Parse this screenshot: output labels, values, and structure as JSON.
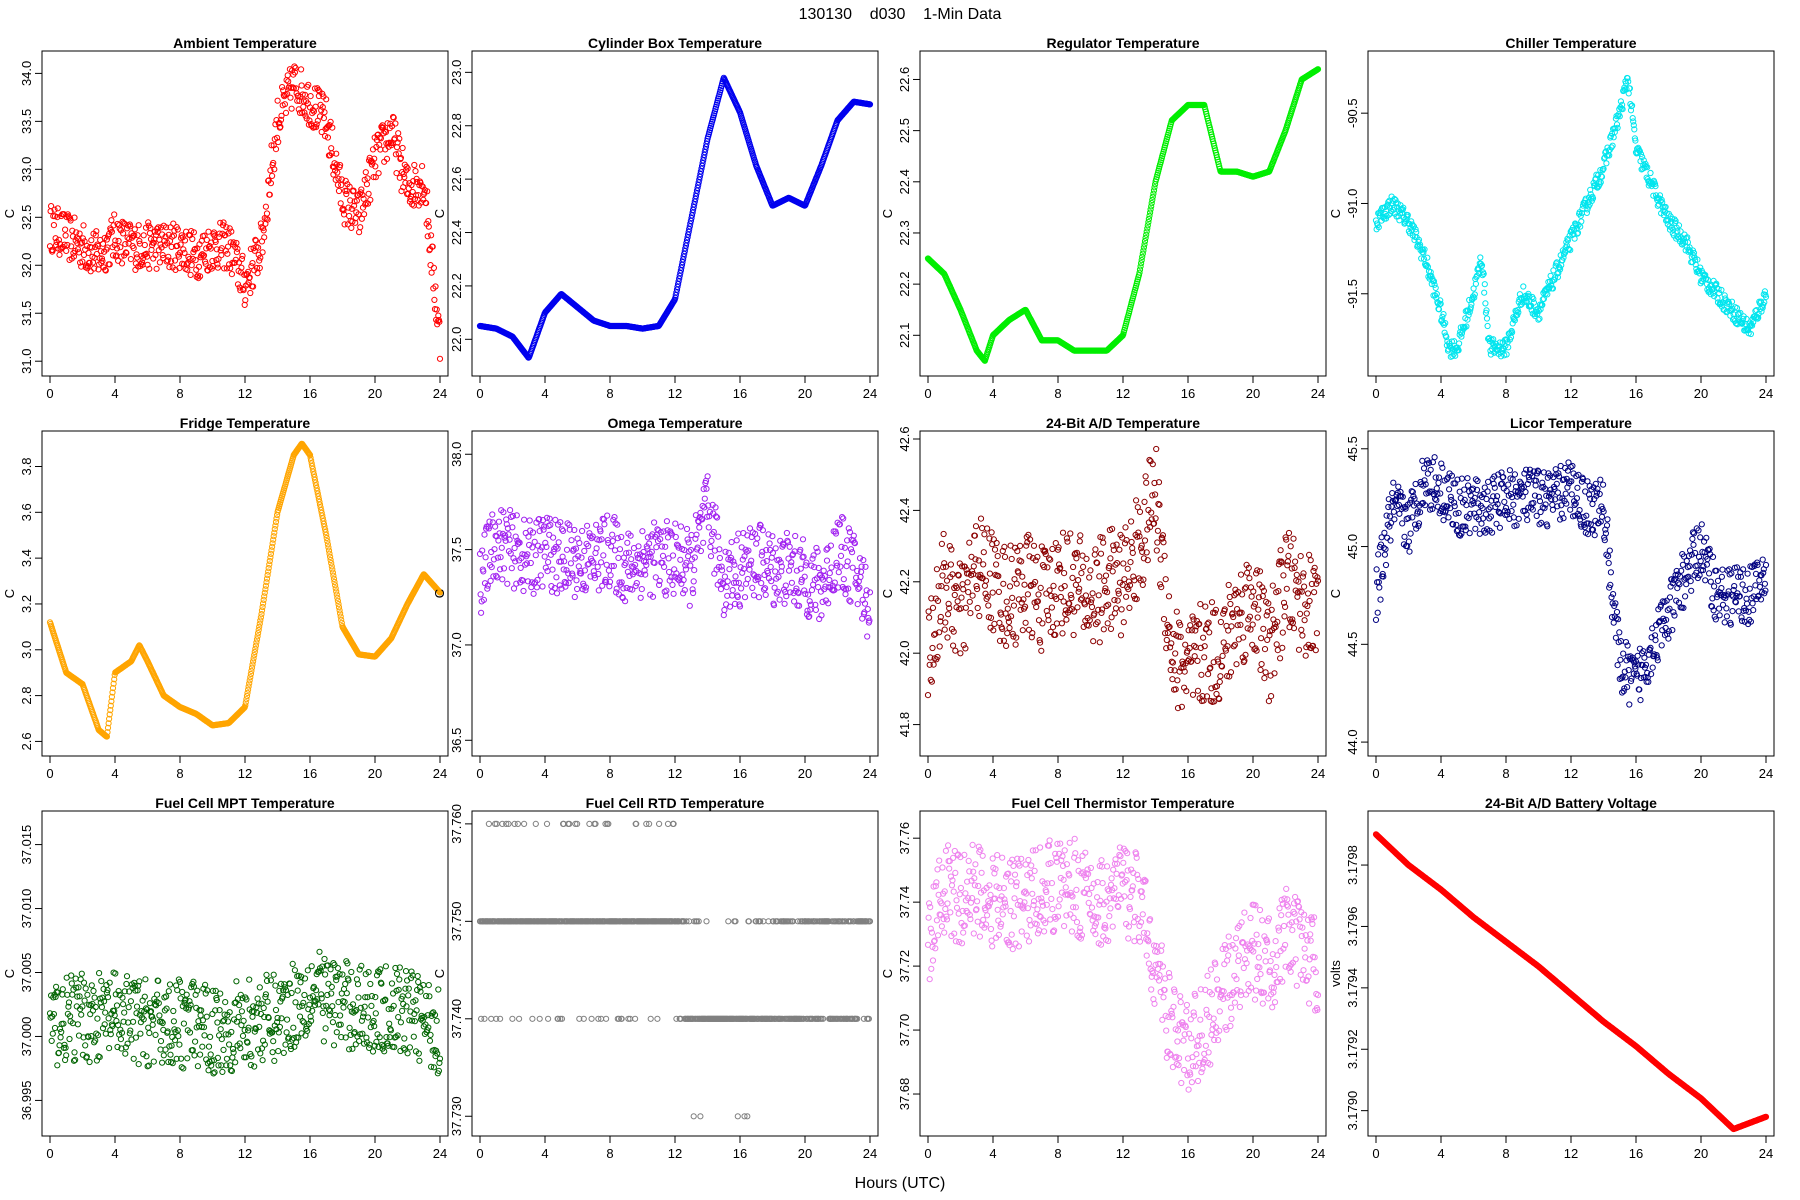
{
  "figure": {
    "title": "130130    d030    1-Min Data",
    "xlabel": "Hours (UTC)"
  },
  "chart_data": [
    {
      "type": "scatter",
      "title": "Ambient Temperature",
      "ylabel": "C",
      "color": "#ff0000",
      "xlim": [
        0,
        24
      ],
      "ylim": [
        30.95,
        34.15
      ],
      "xticks": [
        0,
        4,
        8,
        12,
        16,
        20,
        24
      ],
      "yticks": [
        31.0,
        31.5,
        32.0,
        32.5,
        33.0,
        33.5,
        34.0
      ],
      "ytick_labels": [
        "31.0",
        "31.5",
        "32.0",
        "32.5",
        "33.0",
        "33.5",
        "34.0"
      ],
      "x": [
        0,
        1,
        2,
        3,
        4,
        5,
        6,
        7,
        8,
        9,
        10,
        11,
        12,
        13,
        14,
        15,
        16,
        17,
        18,
        19,
        20,
        21,
        22,
        23,
        24
      ],
      "y": [
        32.4,
        32.3,
        32.2,
        32.1,
        32.3,
        32.2,
        32.2,
        32.2,
        32.2,
        32.1,
        32.2,
        32.2,
        31.8,
        32.2,
        33.5,
        33.9,
        33.7,
        33.5,
        32.7,
        32.5,
        33.1,
        33.4,
        32.8,
        32.9,
        31.2
      ],
      "spread": 0.25
    },
    {
      "type": "scatter",
      "title": "Cylinder Box Temperature",
      "ylabel": "C",
      "color": "#0000ee",
      "xlim": [
        0,
        24
      ],
      "ylim": [
        21.9,
        23.05
      ],
      "xticks": [
        0,
        4,
        8,
        12,
        16,
        20,
        24
      ],
      "yticks": [
        22.0,
        22.2,
        22.4,
        22.6,
        22.8,
        23.0
      ],
      "ytick_labels": [
        "22.0",
        "22.2",
        "22.4",
        "22.6",
        "22.8",
        "23.0"
      ],
      "x": [
        0,
        1,
        2,
        3,
        4,
        5,
        6,
        7,
        8,
        9,
        10,
        11,
        12,
        13,
        14,
        15,
        16,
        17,
        18,
        19,
        20,
        21,
        22,
        23,
        24
      ],
      "y": [
        22.05,
        22.04,
        22.01,
        21.93,
        22.1,
        22.17,
        22.12,
        22.07,
        22.05,
        22.05,
        22.04,
        22.05,
        22.15,
        22.45,
        22.75,
        22.98,
        22.85,
        22.65,
        22.5,
        22.53,
        22.5,
        22.65,
        22.82,
        22.89,
        22.88
      ],
      "spread": 0.0
    },
    {
      "type": "scatter",
      "title": "Regulator Temperature",
      "ylabel": "C",
      "color": "#00ee00",
      "xlim": [
        0,
        24
      ],
      "ylim": [
        22.04,
        22.64
      ],
      "xticks": [
        0,
        4,
        8,
        12,
        16,
        20,
        24
      ],
      "yticks": [
        22.1,
        22.2,
        22.3,
        22.4,
        22.5,
        22.6
      ],
      "ytick_labels": [
        "22.1",
        "22.2",
        "22.3",
        "22.4",
        "22.5",
        "22.6"
      ],
      "x": [
        0,
        1,
        2,
        3,
        3.5,
        4,
        5,
        6,
        7,
        8,
        9,
        10,
        11,
        12,
        13,
        14,
        15,
        16,
        17,
        18,
        19,
        20,
        21,
        22,
        23,
        24
      ],
      "y": [
        22.25,
        22.22,
        22.15,
        22.07,
        22.05,
        22.1,
        22.13,
        22.15,
        22.09,
        22.09,
        22.07,
        22.07,
        22.07,
        22.1,
        22.22,
        22.4,
        22.52,
        22.55,
        22.55,
        22.42,
        22.42,
        22.41,
        22.42,
        22.5,
        22.6,
        22.62
      ],
      "spread": 0.0
    },
    {
      "type": "scatter",
      "title": "Chiller Temperature",
      "ylabel": "C",
      "color": "#00e5ee",
      "xlim": [
        0,
        24
      ],
      "ylim": [
        -91.9,
        -90.2
      ],
      "xticks": [
        0,
        4,
        8,
        12,
        16,
        20,
        24
      ],
      "yticks": [
        -91.5,
        -91.0,
        -90.5
      ],
      "ytick_labels": [
        "-91.5",
        "-91.0",
        "-90.5"
      ],
      "x": [
        0,
        1,
        2,
        3,
        4,
        4.5,
        5,
        6,
        6.5,
        7,
        8,
        9,
        10,
        11,
        12,
        13,
        14,
        15,
        15.5,
        16,
        17,
        18,
        19,
        20,
        21,
        22,
        23,
        24
      ],
      "y": [
        -91.1,
        -91.0,
        -91.1,
        -91.3,
        -91.6,
        -91.8,
        -91.8,
        -91.5,
        -91.3,
        -91.8,
        -91.8,
        -91.5,
        -91.6,
        -91.4,
        -91.2,
        -91.0,
        -90.8,
        -90.5,
        -90.3,
        -90.7,
        -90.9,
        -91.1,
        -91.2,
        -91.4,
        -91.5,
        -91.6,
        -91.7,
        -91.5
      ],
      "spread": 0.05
    },
    {
      "type": "scatter",
      "title": "Fridge Temperature",
      "ylabel": "C",
      "color": "#ffa500",
      "xlim": [
        0,
        24
      ],
      "ylim": [
        2.58,
        3.92
      ],
      "xticks": [
        0,
        4,
        8,
        12,
        16,
        20,
        24
      ],
      "yticks": [
        2.6,
        2.8,
        3.0,
        3.2,
        3.4,
        3.6,
        3.8
      ],
      "ytick_labels": [
        "2.6",
        "2.8",
        "3.0",
        "3.2",
        "3.4",
        "3.6",
        "3.8"
      ],
      "x": [
        0,
        1,
        2,
        3,
        3.5,
        4,
        5,
        5.5,
        6,
        7,
        8,
        9,
        10,
        11,
        12,
        13,
        14,
        15,
        15.5,
        16,
        17,
        18,
        19,
        20,
        21,
        22,
        23,
        24
      ],
      "y": [
        3.12,
        2.9,
        2.85,
        2.65,
        2.62,
        2.9,
        2.95,
        3.02,
        2.95,
        2.8,
        2.75,
        2.72,
        2.67,
        2.68,
        2.75,
        3.15,
        3.6,
        3.85,
        3.9,
        3.85,
        3.5,
        3.1,
        2.98,
        2.97,
        3.05,
        3.2,
        3.33,
        3.25
      ],
      "spread": 0.0
    },
    {
      "type": "scatter",
      "title": "Omega Temperature",
      "ylabel": "C",
      "color": "#a020f0",
      "xlim": [
        0,
        24
      ],
      "ylim": [
        36.47,
        38.08
      ],
      "xticks": [
        0,
        4,
        8,
        12,
        16,
        20,
        24
      ],
      "yticks": [
        36.5,
        37.0,
        37.5,
        38.0
      ],
      "ytick_labels": [
        "36.5",
        "37.0",
        "37.5",
        "38.0"
      ],
      "x": [
        0,
        1,
        2,
        3,
        4,
        5,
        6,
        7,
        8,
        9,
        10,
        11,
        12,
        13,
        14,
        15,
        16,
        17,
        18,
        19,
        20,
        21,
        22,
        23,
        24
      ],
      "y": [
        37.35,
        37.55,
        37.5,
        37.45,
        37.5,
        37.45,
        37.45,
        37.45,
        37.5,
        37.4,
        37.45,
        37.45,
        37.45,
        37.4,
        37.7,
        37.35,
        37.4,
        37.45,
        37.4,
        37.4,
        37.35,
        37.3,
        37.5,
        37.4,
        37.2
      ],
      "spread": 0.2
    },
    {
      "type": "scatter",
      "title": "24-Bit A/D Temperature",
      "ylabel": "C",
      "color": "#8b0000",
      "xlim": [
        0,
        24
      ],
      "ylim": [
        41.74,
        42.6
      ],
      "xticks": [
        0,
        4,
        8,
        12,
        16,
        20,
        24
      ],
      "yticks": [
        41.8,
        42.0,
        42.2,
        42.4,
        42.6
      ],
      "ytick_labels": [
        "41.8",
        "42.0",
        "42.2",
        "42.4",
        "42.6"
      ],
      "x": [
        0,
        1,
        2,
        3,
        4,
        5,
        6,
        7,
        8,
        9,
        10,
        11,
        12,
        13,
        14,
        15,
        16,
        17,
        18,
        19,
        20,
        21,
        22,
        23,
        24
      ],
      "y": [
        42.0,
        42.2,
        42.1,
        42.25,
        42.2,
        42.15,
        42.2,
        42.15,
        42.2,
        42.2,
        42.15,
        42.2,
        42.2,
        42.3,
        42.45,
        42.0,
        41.95,
        42.0,
        42.0,
        42.1,
        42.15,
        42.0,
        42.2,
        42.15,
        42.1
      ],
      "spread": 0.15
    },
    {
      "type": "scatter",
      "title": "Licor Temperature",
      "ylabel": "C",
      "color": "#000080",
      "xlim": [
        0,
        24
      ],
      "ylim": [
        43.98,
        45.55
      ],
      "xticks": [
        0,
        4,
        8,
        12,
        16,
        20,
        24
      ],
      "yticks": [
        44.0,
        44.5,
        45.0,
        45.5
      ],
      "ytick_labels": [
        "44.0",
        "44.5",
        "45.0",
        "45.5"
      ],
      "x": [
        0,
        1,
        2,
        3,
        4,
        5,
        6,
        7,
        8,
        9,
        10,
        11,
        12,
        13,
        14,
        15,
        16,
        17,
        18,
        19,
        20,
        21,
        22,
        23,
        24
      ],
      "y": [
        44.75,
        45.2,
        45.1,
        45.35,
        45.3,
        45.2,
        45.2,
        45.2,
        45.25,
        45.25,
        45.25,
        45.25,
        45.3,
        45.2,
        45.2,
        44.4,
        44.3,
        44.5,
        44.65,
        44.85,
        45.0,
        44.75,
        44.75,
        44.75,
        44.85
      ],
      "spread": 0.15
    },
    {
      "type": "scatter",
      "title": "Fuel Cell MPT Temperature",
      "ylabel": "C",
      "color": "#006400",
      "xlim": [
        0,
        24
      ],
      "ylim": [
        36.993,
        37.017
      ],
      "xticks": [
        0,
        4,
        8,
        12,
        16,
        20,
        24
      ],
      "yticks": [
        36.995,
        37.0,
        37.005,
        37.01,
        37.015
      ],
      "ytick_labels": [
        "36.995",
        "37.000",
        "37.005",
        "37.010",
        "37.015"
      ],
      "x": [
        0,
        2,
        4,
        6,
        8,
        10,
        12,
        14,
        16,
        18,
        20,
        22,
        24
      ],
      "y": [
        37.001,
        37.0015,
        37.0015,
        37.001,
        37.001,
        37.0005,
        37.001,
        37.0015,
        37.0035,
        37.0025,
        37.002,
        37.002,
        37.0005
      ],
      "spread": 0.0035
    },
    {
      "type": "scatter",
      "title": "Fuel Cell RTD Temperature",
      "ylabel": "C",
      "color": "#808080",
      "xlim": [
        0,
        24
      ],
      "ylim": [
        37.729,
        37.7605
      ],
      "xticks": [
        0,
        4,
        8,
        12,
        16,
        20,
        24
      ],
      "yticks": [
        37.73,
        37.74,
        37.75,
        37.76
      ],
      "ytick_labels": [
        "37.730",
        "37.740",
        "37.750",
        "37.760"
      ],
      "levels": [
        37.73,
        37.74,
        37.75,
        37.76
      ],
      "x": [
        0,
        1,
        2,
        3,
        4,
        5,
        6,
        7,
        8,
        9,
        10,
        11,
        12,
        13,
        14,
        15,
        16,
        17,
        18,
        19,
        20,
        21,
        22,
        23,
        24
      ],
      "y": [
        37.75,
        37.75,
        37.75,
        37.75,
        37.75,
        37.75,
        37.75,
        37.75,
        37.75,
        37.75,
        37.75,
        37.75,
        37.75,
        37.74,
        37.74,
        37.74,
        37.74,
        37.74,
        37.745,
        37.745,
        37.745,
        37.745,
        37.745,
        37.745,
        37.75
      ],
      "spread": 0.006
    },
    {
      "type": "scatter",
      "title": "Fuel Cell Thermistor Temperature",
      "ylabel": "C",
      "color": "#ee82ee",
      "xlim": [
        0,
        24
      ],
      "ylim": [
        37.67,
        37.766
      ],
      "xticks": [
        0,
        4,
        8,
        12,
        16,
        20,
        24
      ],
      "yticks": [
        37.68,
        37.7,
        37.72,
        37.74,
        37.76
      ],
      "ytick_labels": [
        "37.68",
        "37.70",
        "37.72",
        "37.74",
        "37.76"
      ],
      "x": [
        0,
        1,
        2,
        3,
        4,
        5,
        6,
        7,
        8,
        9,
        10,
        11,
        12,
        13,
        14,
        15,
        16,
        17,
        18,
        19,
        20,
        21,
        22,
        23,
        24
      ],
      "y": [
        37.725,
        37.745,
        37.74,
        37.745,
        37.74,
        37.74,
        37.74,
        37.745,
        37.745,
        37.745,
        37.74,
        37.74,
        37.745,
        37.74,
        37.72,
        37.7,
        37.695,
        37.7,
        37.71,
        37.72,
        37.725,
        37.72,
        37.73,
        37.725,
        37.72
      ],
      "spread": 0.015
    },
    {
      "type": "scatter",
      "title": "24-Bit A/D Battery Voltage",
      "ylabel": "volts",
      "color": "#ff0000",
      "xlim": [
        0,
        24
      ],
      "ylim": [
        3.17895,
        3.17995
      ],
      "xticks": [
        0,
        4,
        8,
        12,
        16,
        20,
        24
      ],
      "yticks": [
        3.179,
        3.1792,
        3.1794,
        3.1796,
        3.1798
      ],
      "ytick_labels": [
        "3.1790",
        "3.1792",
        "3.1794",
        "3.1796",
        "3.1798"
      ],
      "x": [
        0,
        2,
        4,
        6,
        8,
        10,
        12,
        14,
        16,
        18,
        20,
        22,
        24
      ],
      "y": [
        3.1799,
        3.1798,
        3.17972,
        3.17963,
        3.17955,
        3.17947,
        3.17938,
        3.17929,
        3.17921,
        3.17912,
        3.17904,
        3.17894,
        3.17898
      ],
      "spread": 0.0
    }
  ]
}
